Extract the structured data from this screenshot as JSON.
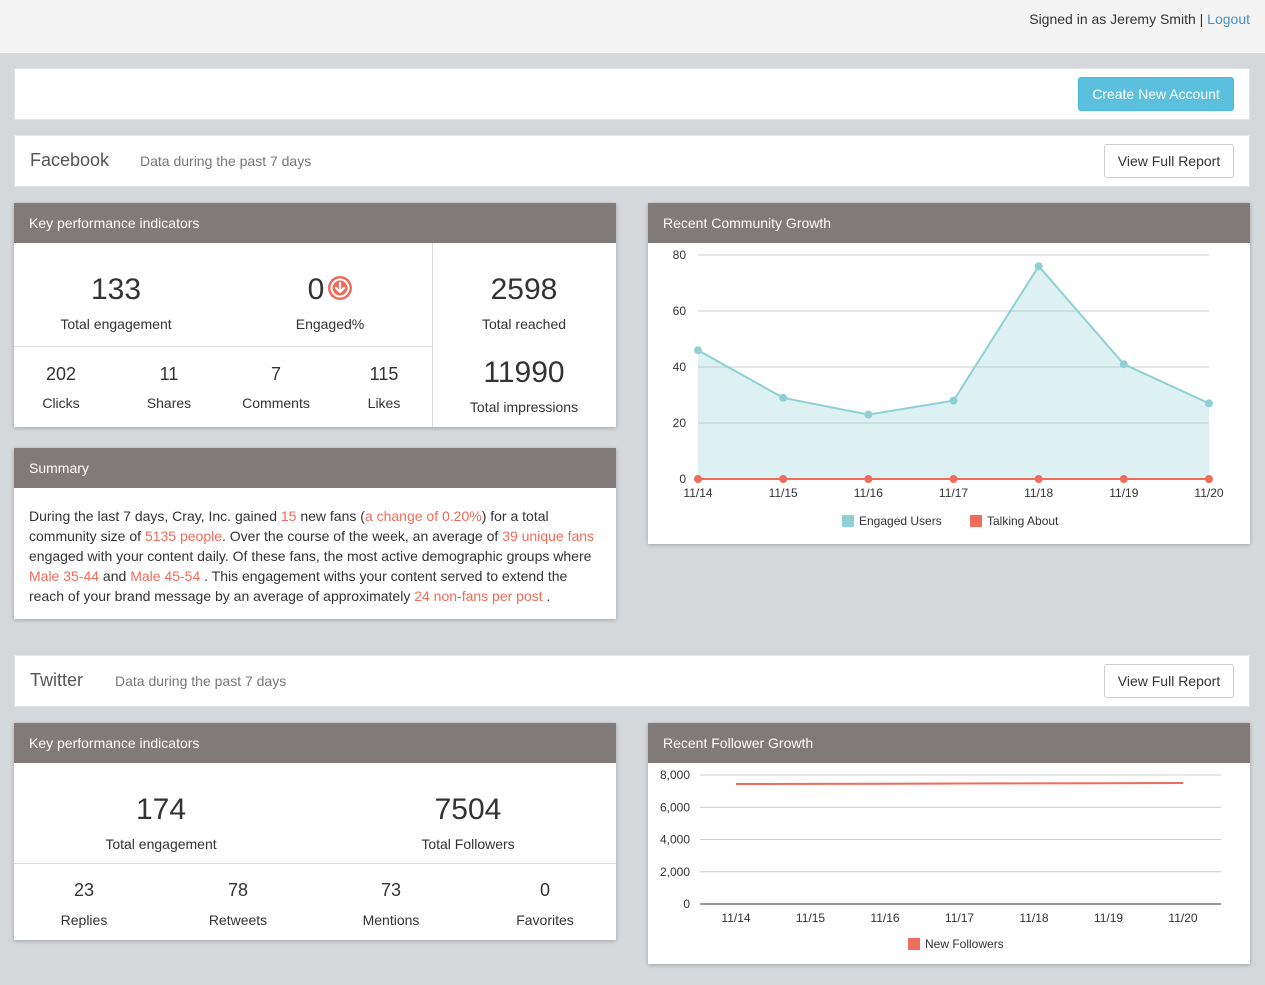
{
  "header": {
    "signed_in_text": "Signed in as Jeremy Smith |",
    "logout_label": "Logout"
  },
  "toolbar": {
    "create_label": "Create New Account"
  },
  "facebook": {
    "title": "Facebook",
    "subtitle": "Data during the past 7 days",
    "report_label": "View Full Report",
    "kpi": {
      "title": "Key performance indicators",
      "total_engagement": "133",
      "total_engagement_label": "Total engagement",
      "engaged_pct": "0",
      "engaged_pct_label": "Engaged%",
      "total_reached": "2598",
      "total_reached_label": "Total reached",
      "total_impressions": "11990",
      "total_impressions_label": "Total impressions",
      "small": [
        {
          "value": "202",
          "label": "Clicks"
        },
        {
          "value": "11",
          "label": "Shares"
        },
        {
          "value": "7",
          "label": "Comments"
        },
        {
          "value": "115",
          "label": "Likes"
        }
      ]
    },
    "summary": {
      "title": "Summary",
      "parts": [
        {
          "t": "During the last 7 days, Cray, Inc. gained ",
          "hl": false
        },
        {
          "t": "15",
          "hl": true
        },
        {
          "t": " new fans (",
          "hl": false
        },
        {
          "t": "a change of 0.20%",
          "hl": true
        },
        {
          "t": ") for a total community size of ",
          "hl": false
        },
        {
          "t": "5135 people",
          "hl": true
        },
        {
          "t": ". Over the course of the week, an average of ",
          "hl": false
        },
        {
          "t": "39 unique fans",
          "hl": true
        },
        {
          "t": " engaged with your content daily. Of these fans, the most active demographic groups where ",
          "hl": false
        },
        {
          "t": "Male 35-44",
          "hl": true
        },
        {
          "t": " and ",
          "hl": false
        },
        {
          "t": "Male 45-54",
          "hl": true
        },
        {
          "t": " . This engagement withs your content served to extend the reach of your brand message by an average of approximately ",
          "hl": false
        },
        {
          "t": "24 non-fans per post",
          "hl": true
        },
        {
          "t": " .",
          "hl": false
        }
      ]
    },
    "growth_title": "Recent Community Growth"
  },
  "twitter": {
    "title": "Twitter",
    "subtitle": "Data during the past 7 days",
    "report_label": "View Full Report",
    "kpi": {
      "title": "Key performance indicators",
      "total_engagement": "174",
      "total_engagement_label": "Total engagement",
      "total_followers": "7504",
      "total_followers_label": "Total Followers",
      "small": [
        {
          "value": "23",
          "label": "Replies"
        },
        {
          "value": "78",
          "label": "Retweets"
        },
        {
          "value": "73",
          "label": "Mentions"
        },
        {
          "value": "0",
          "label": "Favorites"
        }
      ]
    },
    "growth_title": "Recent Follower Growth"
  },
  "chart_data": [
    {
      "type": "area",
      "title": "Recent Community Growth",
      "categories": [
        "11/14",
        "11/15",
        "11/16",
        "11/17",
        "11/18",
        "11/19",
        "11/20"
      ],
      "ylim": [
        0,
        80
      ],
      "yticks": [
        "0",
        "20",
        "40",
        "60",
        "80"
      ],
      "grid": true,
      "legend": "bottom",
      "series": [
        {
          "name": "Engaged Users",
          "color": "#8fd0d6",
          "values": [
            46,
            29,
            23,
            28,
            76,
            41,
            27
          ]
        },
        {
          "name": "Talking About",
          "color": "#ef6b5a",
          "values": [
            0,
            0,
            0,
            0,
            0,
            0,
            0
          ]
        }
      ]
    },
    {
      "type": "line",
      "title": "Recent Follower Growth",
      "categories": [
        "11/14",
        "11/15",
        "11/16",
        "11/17",
        "11/18",
        "11/19",
        "11/20"
      ],
      "ylim": [
        0,
        8000
      ],
      "yticks": [
        "0",
        "2,000",
        "4,000",
        "6,000",
        "8,000"
      ],
      "grid": true,
      "legend": "bottom",
      "series": [
        {
          "name": "New Followers",
          "color": "#ef6b5a",
          "values": [
            7440,
            7450,
            7460,
            7470,
            7480,
            7490,
            7504
          ]
        }
      ]
    }
  ]
}
